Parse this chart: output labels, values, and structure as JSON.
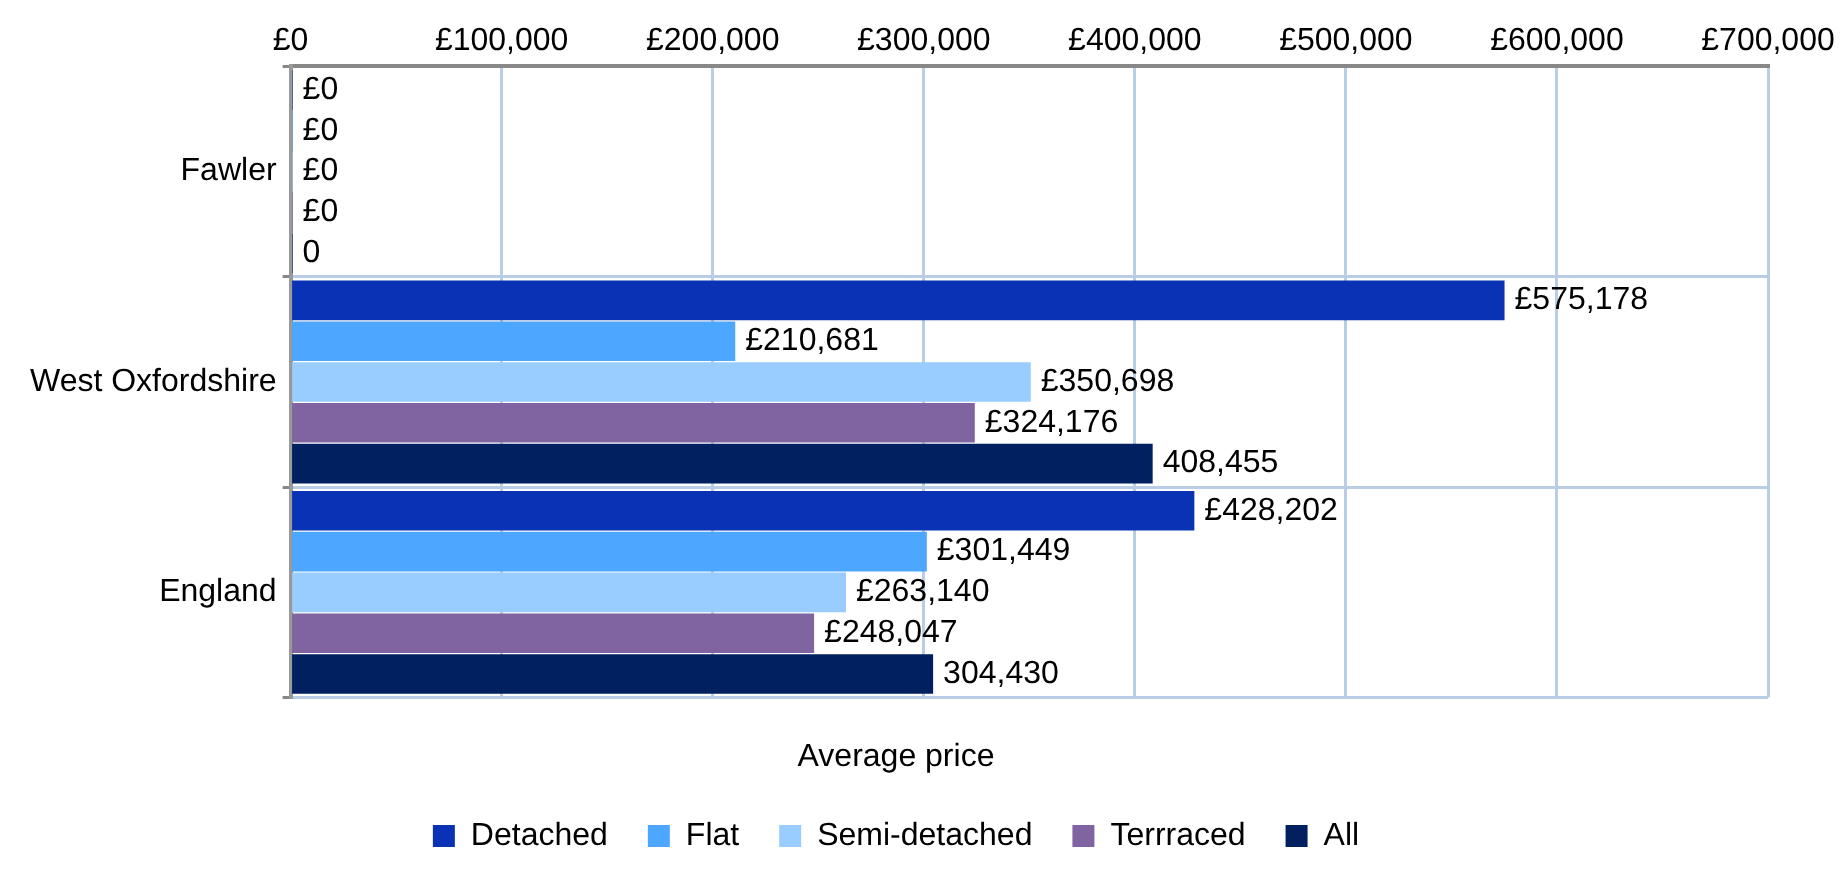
{
  "chart_data": {
    "type": "bar",
    "orientation": "horizontal",
    "xlabel": "Average price",
    "categories": [
      "Fawler",
      "West Oxfordshire",
      "England"
    ],
    "series": [
      {
        "name": "Detached",
        "color": "#0a32b4",
        "values": [
          0,
          575178,
          428202
        ],
        "value_labels": [
          "£0",
          "£575,178",
          "£428,202"
        ]
      },
      {
        "name": "Flat",
        "color": "#4da6ff",
        "values": [
          0,
          210681,
          301449
        ],
        "value_labels": [
          "£0",
          "£210,681",
          "£301,449"
        ]
      },
      {
        "name": "Semi-detached",
        "color": "#99ccff",
        "values": [
          0,
          350698,
          263140
        ],
        "value_labels": [
          "£0",
          "£350,698",
          "£263,140"
        ]
      },
      {
        "name": "Terrraced",
        "color": "#8064a2",
        "values": [
          0,
          324176,
          248047
        ],
        "value_labels": [
          "£0",
          "£324,176",
          "£248,047"
        ]
      },
      {
        "name": "All",
        "color": "#002060",
        "values": [
          0,
          408455,
          304430
        ],
        "value_labels": [
          "0",
          "408,455",
          "304,430"
        ]
      }
    ],
    "xlim": [
      0,
      700000
    ],
    "xticks": [
      {
        "value": 0,
        "label": "£0"
      },
      {
        "value": 100000,
        "label": "£100,000"
      },
      {
        "value": 200000,
        "label": "£200,000"
      },
      {
        "value": 300000,
        "label": "£300,000"
      },
      {
        "value": 400000,
        "label": "£400,000"
      },
      {
        "value": 500000,
        "label": "£500,000"
      },
      {
        "value": 600000,
        "label": "£600,000"
      },
      {
        "value": 700000,
        "label": "£700,000"
      }
    ],
    "grid": true,
    "legend": "bottom"
  }
}
